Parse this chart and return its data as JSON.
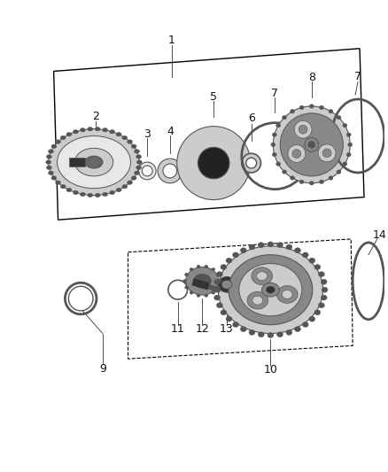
{
  "bg_color": "#ffffff",
  "fig_width": 4.38,
  "fig_height": 5.33,
  "dpi": 100,
  "font_size": 9,
  "line_color": "#333333",
  "part_dark": "#555555",
  "part_mid": "#888888",
  "part_light": "#cccccc",
  "part_vlight": "#e8e8e8",
  "teeth_color": "#777777"
}
